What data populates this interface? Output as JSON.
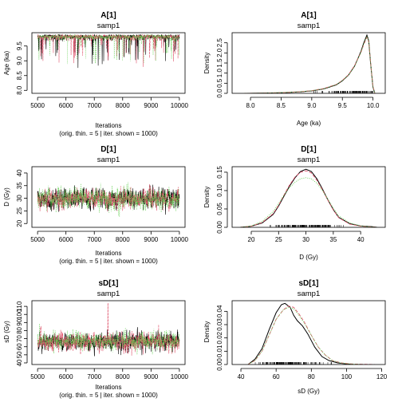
{
  "chart_data": [
    {
      "id": "trace_A",
      "type": "line",
      "title": "A[1]",
      "subtitle": "samp1",
      "xlabel": "Iterations",
      "xlabel2": "(orig. thin. = 5 | iter. shown = 1000)",
      "ylabel": "Age (ka)",
      "xlim": [
        4800,
        10200
      ],
      "ylim": [
        7.9,
        9.95
      ],
      "xticks": [
        5000,
        6000,
        7000,
        8000,
        9000,
        10000
      ],
      "yticks": [
        8.0,
        8.5,
        9.0,
        9.5
      ],
      "x_range": [
        5000,
        10000
      ],
      "series": [
        {
          "color": "#000000",
          "dash": "",
          "center": 9.7,
          "spread": 0.2,
          "lower_tail": 1.6,
          "upper_cap": 9.9,
          "seed": 11
        },
        {
          "color": "#DF536B",
          "dash": "3,1",
          "center": 9.7,
          "spread": 0.2,
          "lower_tail": 1.5,
          "upper_cap": 9.9,
          "seed": 23
        },
        {
          "color": "#61D04F",
          "dash": "1,1.5",
          "center": 9.7,
          "spread": 0.2,
          "lower_tail": 1.5,
          "upper_cap": 9.9,
          "seed": 37
        }
      ]
    },
    {
      "id": "density_A",
      "type": "line",
      "title": "A[1]",
      "subtitle": "samp1",
      "xlabel": "Age (ka)",
      "ylabel": "Density",
      "xlim": [
        7.7,
        10.2
      ],
      "ylim": [
        0,
        3.0
      ],
      "xticks": [
        8.0,
        8.5,
        9.0,
        9.5,
        10.0
      ],
      "yticks": [
        0.0,
        0.5,
        1.0,
        1.5,
        2.0,
        2.5
      ],
      "series": [
        {
          "color": "#000000",
          "dash": "",
          "x": [
            7.95,
            8.2,
            8.5,
            8.8,
            9.0,
            9.2,
            9.4,
            9.5,
            9.6,
            9.7,
            9.8,
            9.85,
            9.9,
            9.93,
            9.96,
            10.0,
            10.03
          ],
          "y": [
            0.0,
            0.01,
            0.03,
            0.07,
            0.12,
            0.22,
            0.42,
            0.62,
            0.9,
            1.35,
            2.05,
            2.5,
            2.88,
            2.6,
            1.5,
            0.3,
            0.0
          ]
        },
        {
          "color": "#DF536B",
          "dash": "4,2",
          "x": [
            7.9,
            8.2,
            8.5,
            8.8,
            9.0,
            9.2,
            9.4,
            9.5,
            9.6,
            9.7,
            9.8,
            9.85,
            9.9,
            9.93,
            9.96,
            10.0,
            10.03
          ],
          "y": [
            0.0,
            0.01,
            0.03,
            0.08,
            0.13,
            0.24,
            0.44,
            0.64,
            0.92,
            1.38,
            2.0,
            2.42,
            2.78,
            2.55,
            1.55,
            0.35,
            0.0
          ]
        },
        {
          "color": "#61D04F",
          "dash": "1,1.5",
          "x": [
            7.9,
            8.2,
            8.5,
            8.8,
            9.0,
            9.2,
            9.4,
            9.5,
            9.6,
            9.7,
            9.8,
            9.85,
            9.9,
            9.93,
            9.96,
            10.0,
            10.03
          ],
          "y": [
            0.0,
            0.01,
            0.04,
            0.08,
            0.13,
            0.23,
            0.43,
            0.63,
            0.9,
            1.34,
            2.0,
            2.45,
            2.82,
            2.58,
            1.52,
            0.32,
            0.0
          ]
        }
      ],
      "rug": {
        "min": 8.2,
        "max": 10.0,
        "mode": 9.8,
        "count": 160
      }
    },
    {
      "id": "trace_D",
      "type": "line",
      "title": "D[1]",
      "subtitle": "samp1",
      "xlabel": "Iterations",
      "xlabel2": "(orig. thin. = 5 | iter. shown = 1000)",
      "ylabel": "D (Gy)",
      "xlim": [
        4800,
        10200
      ],
      "ylim": [
        18.5,
        42.5
      ],
      "xticks": [
        5000,
        6000,
        7000,
        8000,
        9000,
        10000
      ],
      "yticks": [
        20,
        25,
        30,
        35,
        40
      ],
      "x_range": [
        5000,
        10000
      ],
      "series": [
        {
          "color": "#000000",
          "dash": "",
          "center": 29.8,
          "spread": 3.0,
          "seed": 41
        },
        {
          "color": "#DF536B",
          "dash": "3,1",
          "center": 29.8,
          "spread": 2.9,
          "seed": 53
        },
        {
          "color": "#61D04F",
          "dash": "1,1.5",
          "center": 29.6,
          "spread": 3.1,
          "seed": 67
        }
      ]
    },
    {
      "id": "density_D",
      "type": "line",
      "title": "D[1]",
      "subtitle": "samp1",
      "xlabel": "D (Gy)",
      "ylabel": "Density",
      "xlim": [
        16.5,
        44.5
      ],
      "ylim": [
        0,
        0.165
      ],
      "xticks": [
        20,
        25,
        30,
        35,
        40
      ],
      "yticks": [
        0.0,
        0.05,
        0.1,
        0.15
      ],
      "series": [
        {
          "color": "#000000",
          "dash": "",
          "x": [
            18,
            20,
            22,
            24,
            25,
            26,
            27,
            28,
            29,
            30,
            31,
            32,
            33,
            34,
            35,
            36,
            38,
            40,
            42,
            43
          ],
          "y": [
            0.0,
            0.003,
            0.012,
            0.035,
            0.058,
            0.085,
            0.112,
            0.135,
            0.152,
            0.158,
            0.152,
            0.132,
            0.105,
            0.075,
            0.048,
            0.027,
            0.01,
            0.004,
            0.002,
            0.0
          ]
        },
        {
          "color": "#DF536B",
          "dash": "4,2",
          "x": [
            18,
            20,
            22,
            24,
            25,
            26,
            27,
            28,
            29,
            30,
            31,
            32,
            33,
            34,
            35,
            36,
            38,
            40,
            42,
            43
          ],
          "y": [
            0.0,
            0.003,
            0.013,
            0.037,
            0.06,
            0.088,
            0.115,
            0.137,
            0.15,
            0.154,
            0.148,
            0.128,
            0.103,
            0.074,
            0.047,
            0.026,
            0.009,
            0.003,
            0.001,
            0.0
          ]
        },
        {
          "color": "#61D04F",
          "dash": "1,1.5",
          "x": [
            18,
            20,
            22,
            24,
            25,
            26,
            27,
            28,
            29,
            30,
            31,
            32,
            33,
            34,
            35,
            36,
            38,
            40,
            42,
            43
          ],
          "y": [
            0.0,
            0.004,
            0.016,
            0.043,
            0.065,
            0.088,
            0.108,
            0.123,
            0.132,
            0.135,
            0.132,
            0.12,
            0.1,
            0.077,
            0.052,
            0.031,
            0.012,
            0.004,
            0.001,
            0.0
          ]
        }
      ],
      "rug": {
        "min": 21,
        "max": 37,
        "mode": 30,
        "count": 160
      }
    },
    {
      "id": "trace_sD",
      "type": "line",
      "title": "sD[1]",
      "subtitle": "samp1",
      "xlabel": "Iterations",
      "xlabel2": "(orig. thin. = 5 | iter. shown = 1000)",
      "ylabel": "sD (Gy)",
      "xlim": [
        4800,
        10200
      ],
      "ylim": [
        38,
        117
      ],
      "xticks": [
        5000,
        6000,
        7000,
        8000,
        9000,
        10000
      ],
      "yticks": [
        40,
        50,
        60,
        70,
        80,
        90,
        100,
        110
      ],
      "x_range": [
        5000,
        10000
      ],
      "series": [
        {
          "color": "#000000",
          "dash": "",
          "center": 66,
          "spread": 8.5,
          "seed": 71
        },
        {
          "color": "#DF536B",
          "dash": "3,1",
          "center": 66,
          "spread": 8.5,
          "seed": 83,
          "spike": {
            "x": 7480,
            "y": 114
          }
        },
        {
          "color": "#61D04F",
          "dash": "1,1.5",
          "center": 67,
          "spread": 8.8,
          "seed": 97
        }
      ]
    },
    {
      "id": "density_sD",
      "type": "line",
      "title": "sD[1]",
      "subtitle": "samp1",
      "xlabel": "sD (Gy)",
      "ylabel": "Density",
      "xlim": [
        35,
        122
      ],
      "ylim": [
        0,
        0.048
      ],
      "xticks": [
        40,
        60,
        80,
        100,
        120
      ],
      "yticks": [
        0.0,
        0.01,
        0.02,
        0.03,
        0.04
      ],
      "series": [
        {
          "color": "#000000",
          "dash": "",
          "x": [
            44,
            48,
            52,
            56,
            60,
            63,
            65,
            68,
            70,
            72,
            75,
            78,
            82,
            86,
            90,
            95,
            100,
            104
          ],
          "y": [
            0.0,
            0.004,
            0.012,
            0.026,
            0.039,
            0.045,
            0.046,
            0.043,
            0.037,
            0.033,
            0.029,
            0.023,
            0.013,
            0.006,
            0.003,
            0.0012,
            0.0004,
            0.0
          ]
        },
        {
          "color": "#DF536B",
          "dash": "4,2",
          "x": [
            44,
            48,
            52,
            56,
            60,
            64,
            67,
            70,
            73,
            76,
            80,
            84,
            88,
            92,
            97,
            103,
            110,
            116
          ],
          "y": [
            0.0,
            0.003,
            0.01,
            0.022,
            0.034,
            0.041,
            0.044,
            0.043,
            0.038,
            0.032,
            0.022,
            0.013,
            0.007,
            0.003,
            0.0012,
            0.0004,
            0.0002,
            0.0
          ]
        },
        {
          "color": "#61D04F",
          "dash": "1,1.5",
          "x": [
            44,
            48,
            52,
            56,
            60,
            64,
            67,
            70,
            73,
            76,
            80,
            84,
            88,
            92,
            97,
            103,
            110
          ],
          "y": [
            0.0,
            0.003,
            0.01,
            0.022,
            0.034,
            0.041,
            0.043,
            0.042,
            0.037,
            0.031,
            0.022,
            0.013,
            0.007,
            0.003,
            0.0012,
            0.0004,
            0.0
          ]
        }
      ],
      "rug": {
        "min": 48,
        "max": 100,
        "mode": 66,
        "count": 160
      }
    }
  ],
  "colors": {
    "chain1": "#000000",
    "chain2": "#DF536B",
    "chain3": "#61D04F"
  }
}
